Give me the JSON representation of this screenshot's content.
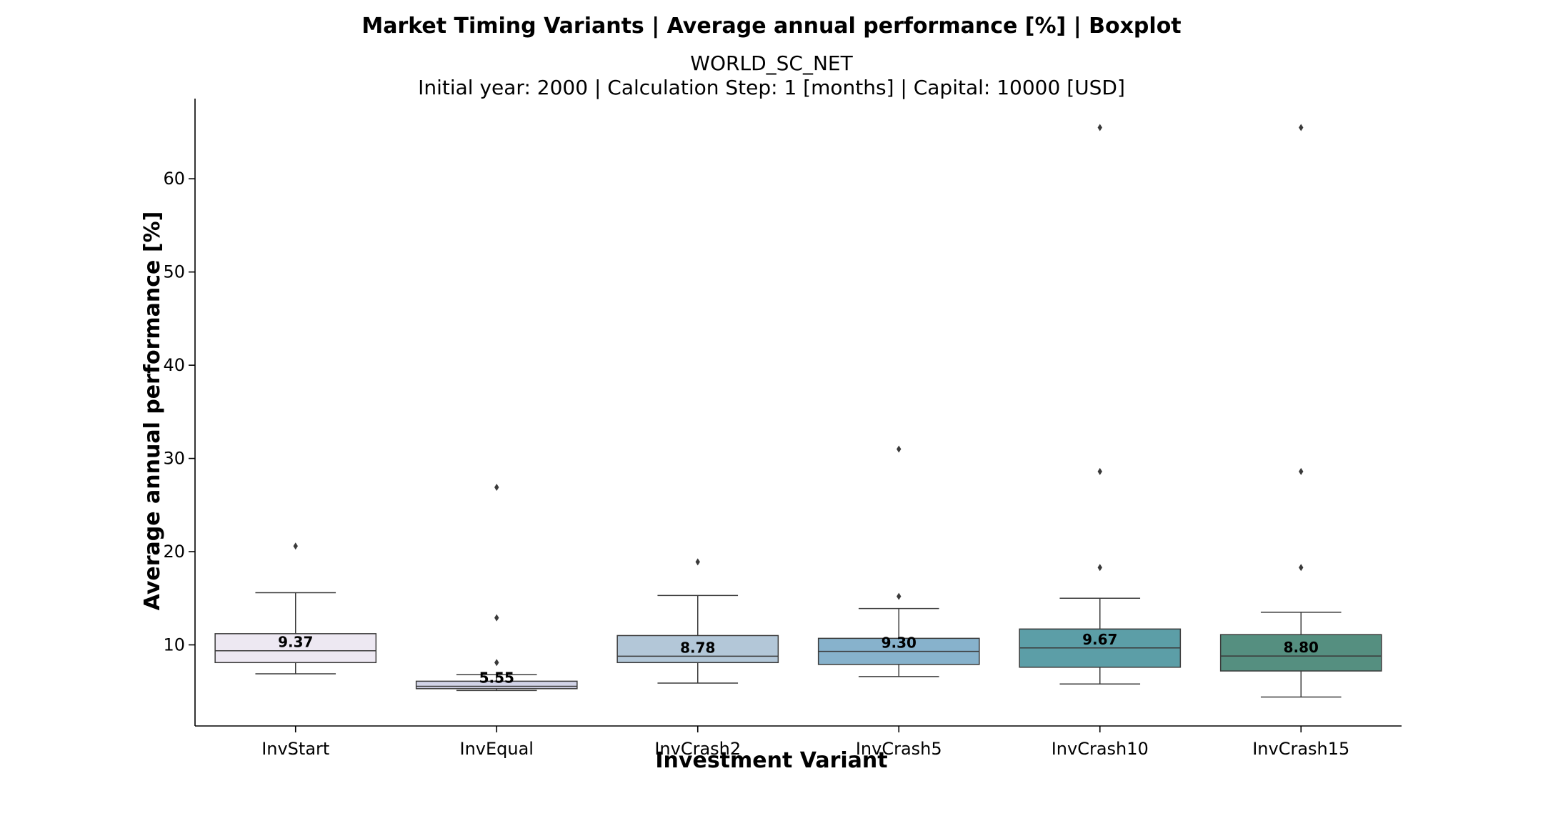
{
  "chart_data": {
    "type": "boxplot",
    "title": "Market Timing Variants | Average annual performance [%] | Boxplot",
    "subtitle_line1": "WORLD_SC_NET",
    "subtitle_line2": "Initial year: 2000 | Calculation Step: 1 [months] | Capital: 10000 [USD]",
    "xlabel": "Investment Variant",
    "ylabel": "Average annual performance [%]",
    "ylim": [
      1.3,
      68.6
    ],
    "yticks": [
      10,
      20,
      30,
      40,
      50,
      60
    ],
    "categories": [
      "InvStart",
      "InvEqual",
      "InvCrash2",
      "InvCrash5",
      "InvCrash10",
      "InvCrash15"
    ],
    "boxes": [
      {
        "category": "InvStart",
        "whisker_low": 6.9,
        "q1": 8.1,
        "median": 9.37,
        "q3": 11.2,
        "whisker_high": 15.6,
        "outliers": [
          20.6
        ],
        "median_label": "9.37",
        "color": "#ede8f2"
      },
      {
        "category": "InvEqual",
        "whisker_low": 5.1,
        "q1": 5.3,
        "median": 5.55,
        "q3": 6.1,
        "whisker_high": 6.8,
        "outliers": [
          8.1,
          12.9,
          26.9
        ],
        "median_label": "5.55",
        "color": "#d2d4e8"
      },
      {
        "category": "InvCrash2",
        "whisker_low": 5.9,
        "q1": 8.1,
        "median": 8.78,
        "q3": 11.0,
        "whisker_high": 15.3,
        "outliers": [
          18.9
        ],
        "median_label": "8.78",
        "color": "#b3c7d8"
      },
      {
        "category": "InvCrash5",
        "whisker_low": 6.6,
        "q1": 7.9,
        "median": 9.3,
        "q3": 10.7,
        "whisker_high": 13.9,
        "outliers": [
          15.2,
          31.0
        ],
        "median_label": "9.30",
        "color": "#87b2cc"
      },
      {
        "category": "InvCrash10",
        "whisker_low": 5.8,
        "q1": 7.6,
        "median": 9.67,
        "q3": 11.7,
        "whisker_high": 15.0,
        "outliers": [
          18.3,
          28.6,
          65.5
        ],
        "median_label": "9.67",
        "color": "#5c9ea7"
      },
      {
        "category": "InvCrash15",
        "whisker_low": 4.4,
        "q1": 7.2,
        "median": 8.8,
        "q3": 11.1,
        "whisker_high": 13.5,
        "outliers": [
          18.3,
          28.6,
          65.5
        ],
        "median_label": "8.80",
        "color": "#558f80"
      }
    ],
    "grid": false,
    "legend": "none"
  }
}
